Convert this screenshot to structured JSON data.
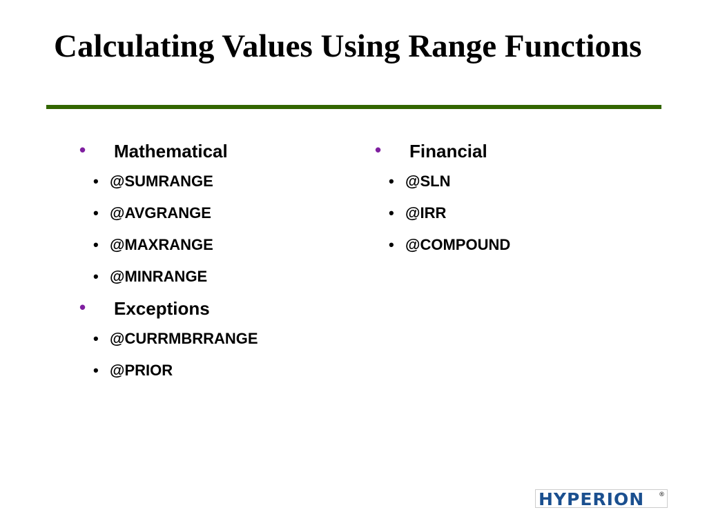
{
  "title": "Calculating Values Using Range Functions",
  "columns": [
    {
      "groups": [
        {
          "label": "Mathematical",
          "items": [
            "@SUMRANGE",
            "@AVGRANGE",
            "@MAXRANGE",
            "@MINRANGE"
          ]
        },
        {
          "label": "Exceptions",
          "items": [
            "@CURRMBRRANGE",
            "@PRIOR"
          ]
        }
      ]
    },
    {
      "groups": [
        {
          "label": "Financial",
          "items": [
            "@SLN",
            "@IRR",
            "@COMPOUND"
          ]
        }
      ]
    }
  ],
  "logo": {
    "text": "HYPERION",
    "mark": "®"
  },
  "colors": {
    "rule": "#336600",
    "bullet": "#7f1fa0",
    "logo": "#1a4f8f"
  }
}
